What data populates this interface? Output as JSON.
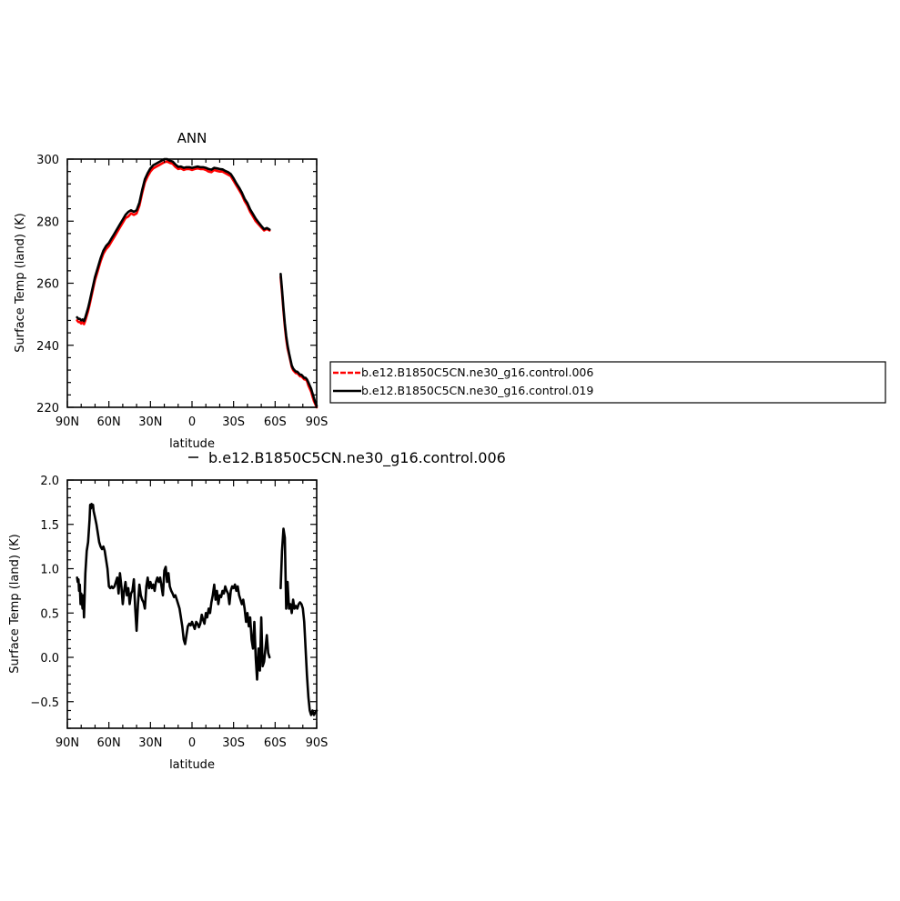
{
  "chart_data": [
    {
      "type": "line",
      "title": "ANN",
      "xlabel": "latitude",
      "ylabel": "Surface Temp (land) (K)",
      "xlim": [
        90,
        -90
      ],
      "ylim": [
        220,
        300
      ],
      "x_ticks": [
        {
          "value": 90,
          "label": "90N"
        },
        {
          "value": 60,
          "label": "60N"
        },
        {
          "value": 30,
          "label": "30N"
        },
        {
          "value": 0,
          "label": "0"
        },
        {
          "value": -30,
          "label": "30S"
        },
        {
          "value": -60,
          "label": "60S"
        },
        {
          "value": -90,
          "label": "90S"
        }
      ],
      "y_ticks": [
        220,
        240,
        260,
        280,
        300
      ],
      "legend": {
        "placement": "right",
        "entries": [
          {
            "name": "b.e12.B1850C5CN.ne30_g16.control.006",
            "color": "#ff0000",
            "style": "dashed"
          },
          {
            "name": "b.e12.B1850C5CN.ne30_g16.control.019",
            "color": "#000000",
            "style": "solid"
          }
        ]
      },
      "series": [
        {
          "name": "b.e12.B1850C5CN.ne30_g16.control.006",
          "color": "#ff0000",
          "segments": [
            {
              "x": [
                83,
                82,
                81,
                80,
                79,
                78,
                77,
                76,
                75,
                74,
                73,
                72,
                71,
                70,
                68,
                66,
                64,
                62,
                60,
                58,
                56,
                54,
                52,
                50,
                48,
                46,
                44,
                42,
                40,
                38,
                36,
                34,
                32,
                30,
                28,
                26,
                24,
                22,
                20,
                18,
                16,
                14,
                12,
                10,
                8,
                6,
                4,
                2,
                0,
                -2,
                -4,
                -6,
                -8,
                -10,
                -12,
                -14,
                -16,
                -18,
                -20,
                -22,
                -24,
                -26,
                -28,
                -30,
                -32,
                -34,
                -36,
                -38,
                -40,
                -42,
                -44,
                -46,
                -48,
                -50,
                -52,
                -54,
                -56
              ],
              "y": [
                248,
                247.5,
                247.5,
                247,
                247.5,
                246.8,
                248,
                249.5,
                251,
                253,
                255,
                257,
                259,
                261,
                264,
                267,
                269.5,
                271,
                272,
                273.5,
                275,
                276.5,
                278,
                279.5,
                281,
                281.5,
                282.5,
                282,
                282.5,
                285,
                289,
                292.5,
                294.5,
                296,
                297,
                297.5,
                298,
                298.5,
                299,
                299.2,
                298.8,
                298.5,
                297.5,
                296.8,
                297,
                296.5,
                296.8,
                296.8,
                296.5,
                296.8,
                297,
                296.8,
                296.8,
                296.5,
                296,
                295.8,
                296.5,
                296.2,
                296,
                296,
                295.5,
                295,
                294.5,
                293,
                291.5,
                290,
                288.5,
                286.5,
                285,
                283,
                281.5,
                280,
                279,
                278,
                277,
                277.5,
                277
              ]
            },
            {
              "x": [
                -64,
                -65,
                -66,
                -67,
                -68,
                -69,
                -70,
                -71,
                -72,
                -73,
                -74,
                -75,
                -76,
                -77,
                -78,
                -79,
                -80,
                -81,
                -82,
                -83,
                -84,
                -85,
                -86,
                -87,
                -88,
                -89,
                -90
              ],
              "y": [
                262,
                257,
                251,
                246,
                242,
                239,
                237,
                235,
                233,
                232,
                231.5,
                231,
                231,
                230.5,
                230,
                230,
                229.5,
                229,
                229,
                228.5,
                227,
                226,
                225,
                223.5,
                222,
                221,
                220
              ]
            }
          ]
        },
        {
          "name": "b.e12.B1850C5CN.ne30_g16.control.019",
          "color": "#000000",
          "segments": [
            {
              "x": [
                83,
                82,
                81,
                80,
                79,
                78,
                77,
                76,
                75,
                74,
                73,
                72,
                71,
                70,
                68,
                66,
                64,
                62,
                60,
                58,
                56,
                54,
                52,
                50,
                48,
                46,
                44,
                42,
                40,
                38,
                36,
                34,
                32,
                30,
                28,
                26,
                24,
                22,
                20,
                18,
                16,
                14,
                12,
                10,
                8,
                6,
                4,
                2,
                0,
                -2,
                -4,
                -6,
                -8,
                -10,
                -12,
                -14,
                -16,
                -18,
                -20,
                -22,
                -24,
                -26,
                -28,
                -30,
                -32,
                -34,
                -36,
                -38,
                -40,
                -42,
                -44,
                -46,
                -48,
                -50,
                -52,
                -54,
                -56
              ],
              "y": [
                249,
                248.5,
                248.5,
                248,
                248.3,
                247.8,
                249,
                250.5,
                252,
                254,
                256,
                258,
                260,
                262,
                265,
                268,
                270.5,
                272,
                273,
                274.5,
                276,
                277.5,
                279,
                280.5,
                282,
                283,
                283.5,
                283,
                283.5,
                286,
                290,
                293.5,
                295.5,
                297,
                298,
                298.5,
                299,
                299.5,
                300,
                300,
                299.5,
                299.2,
                298.3,
                297.5,
                297.6,
                297.2,
                297.4,
                297.4,
                297.2,
                297.4,
                297.6,
                297.4,
                297.4,
                297.2,
                296.8,
                296.6,
                297.2,
                297,
                296.8,
                296.7,
                296.2,
                295.8,
                295.2,
                293.8,
                292.2,
                290.8,
                289.2,
                287.2,
                285.8,
                283.8,
                282.3,
                280.8,
                279.6,
                278.5,
                277.4,
                277.8,
                277.3
              ]
            },
            {
              "x": [
                -64,
                -65,
                -66,
                -67,
                -68,
                -69,
                -70,
                -71,
                -72,
                -73,
                -74,
                -75,
                -76,
                -77,
                -78,
                -79,
                -80,
                -81,
                -82,
                -83,
                -84,
                -85,
                -86,
                -87,
                -88,
                -89,
                -90
              ],
              "y": [
                263,
                258,
                252,
                247,
                243,
                240,
                237.5,
                235.5,
                233.5,
                232.5,
                232,
                231.5,
                231.5,
                231,
                230.5,
                230.5,
                230,
                229.5,
                229.5,
                229,
                228,
                227,
                226,
                224.5,
                223,
                221.5,
                220.5
              ]
            }
          ]
        }
      ]
    },
    {
      "type": "line",
      "title": "",
      "xlabel": "latitude",
      "ylabel": "Surface Temp (land) (K)",
      "xlim": [
        90,
        -90
      ],
      "ylim": [
        -0.8,
        2.0
      ],
      "x_ticks": [
        {
          "value": 90,
          "label": "90N"
        },
        {
          "value": 60,
          "label": "60N"
        },
        {
          "value": 30,
          "label": "30N"
        },
        {
          "value": 0,
          "label": "0"
        },
        {
          "value": -30,
          "label": "30S"
        },
        {
          "value": -60,
          "label": "60S"
        },
        {
          "value": -90,
          "label": "90S"
        }
      ],
      "y_ticks": [
        {
          "value": -0.5,
          "label": "−0.5"
        },
        {
          "value": 0.0,
          "label": "0.0"
        },
        {
          "value": 0.5,
          "label": "0.5"
        },
        {
          "value": 1.0,
          "label": "1.0"
        },
        {
          "value": 1.5,
          "label": "1.5"
        },
        {
          "value": 2.0,
          "label": "2.0"
        }
      ],
      "legend": {
        "placement": "top",
        "entries": [
          {
            "name": "b.e12.B1850C5CN.ne30_g16.control.006",
            "color": "#000000",
            "style": "solid"
          }
        ]
      },
      "series": [
        {
          "name": "b.e12.B1850C5CN.ne30_g16.control.006",
          "color": "#000000",
          "segments": [
            {
              "x": [
                83,
                82.5,
                82,
                81.5,
                81,
                80.5,
                80,
                79,
                78.5,
                78,
                77,
                76,
                75,
                74,
                73.5,
                73,
                72.5,
                72,
                71.5,
                71,
                70,
                69,
                68,
                67,
                66,
                65,
                64,
                63,
                62,
                61,
                60,
                59,
                58,
                57,
                56,
                55,
                54,
                53,
                52,
                51,
                50,
                49,
                48,
                47,
                46,
                45,
                44,
                43,
                42,
                41,
                40,
                39,
                38,
                37,
                36,
                35,
                34,
                33,
                32,
                31,
                30,
                29,
                28,
                27,
                26,
                25,
                24,
                23,
                22,
                21,
                20,
                19,
                18,
                17,
                16,
                15,
                14,
                13,
                12,
                11,
                10,
                9,
                8,
                7,
                6,
                5,
                4,
                3,
                2,
                1,
                0,
                -1,
                -2,
                -3,
                -4,
                -5,
                -6,
                -7,
                -8,
                -9,
                -10,
                -11,
                -12,
                -13,
                -14,
                -15,
                -16,
                -17,
                -18,
                -19,
                -20,
                -21,
                -22,
                -23,
                -24,
                -25,
                -26,
                -27,
                -28,
                -29,
                -30,
                -31,
                -32,
                -33,
                -34,
                -35,
                -36,
                -37,
                -38,
                -39,
                -40,
                -41,
                -42,
                -43,
                -44,
                -45,
                -46,
                -47,
                -48,
                -49,
                -50,
                -51,
                -52,
                -53,
                -54,
                -55,
                -56
              ],
              "y": [
                0.9,
                0.85,
                0.88,
                0.75,
                0.82,
                0.6,
                0.72,
                0.55,
                0.7,
                0.45,
                0.95,
                1.2,
                1.3,
                1.55,
                1.72,
                1.68,
                1.73,
                1.7,
                1.72,
                1.65,
                1.58,
                1.5,
                1.4,
                1.3,
                1.25,
                1.22,
                1.25,
                1.2,
                1.1,
                1.0,
                0.8,
                0.78,
                0.8,
                0.78,
                0.8,
                0.85,
                0.9,
                0.72,
                0.95,
                0.8,
                0.6,
                0.75,
                0.85,
                0.7,
                0.78,
                0.6,
                0.72,
                0.75,
                0.88,
                0.55,
                0.3,
                0.6,
                0.82,
                0.7,
                0.65,
                0.62,
                0.55,
                0.8,
                0.9,
                0.78,
                0.85,
                0.78,
                0.82,
                0.75,
                0.85,
                0.9,
                0.85,
                0.9,
                0.8,
                0.7,
                0.98,
                1.02,
                0.85,
                0.95,
                0.8,
                0.75,
                0.72,
                0.68,
                0.7,
                0.65,
                0.6,
                0.55,
                0.45,
                0.35,
                0.2,
                0.15,
                0.25,
                0.35,
                0.38,
                0.36,
                0.4,
                0.36,
                0.32,
                0.4,
                0.38,
                0.34,
                0.38,
                0.48,
                0.42,
                0.38,
                0.5,
                0.45,
                0.55,
                0.5,
                0.62,
                0.7,
                0.82,
                0.65,
                0.75,
                0.6,
                0.7,
                0.68,
                0.75,
                0.72,
                0.8,
                0.75,
                0.72,
                0.6,
                0.75,
                0.8,
                0.78,
                0.82,
                0.75,
                0.8,
                0.7,
                0.65,
                0.6,
                0.65,
                0.55,
                0.4,
                0.5,
                0.35,
                0.45,
                0.2,
                0.1,
                0.4,
                0.0,
                -0.25,
                0.1,
                -0.15,
                0.45,
                -0.1,
                -0.05,
                0.1,
                0.25,
                0.05,
                0.0
              ]
            },
            {
              "x": [
                -64,
                -65,
                -66,
                -67,
                -68,
                -69,
                -70,
                -71,
                -72,
                -73,
                -74,
                -75,
                -76,
                -77,
                -78,
                -79,
                -80,
                -81,
                -82,
                -83,
                -84,
                -85,
                -86,
                -87,
                -88,
                -89,
                -90
              ],
              "y": [
                0.78,
                1.2,
                1.45,
                1.35,
                0.55,
                0.85,
                0.55,
                0.6,
                0.5,
                0.65,
                0.55,
                0.58,
                0.55,
                0.6,
                0.62,
                0.6,
                0.55,
                0.4,
                0.1,
                -0.2,
                -0.45,
                -0.6,
                -0.65,
                -0.6,
                -0.65,
                -0.62,
                -0.6
              ]
            }
          ]
        }
      ]
    }
  ]
}
